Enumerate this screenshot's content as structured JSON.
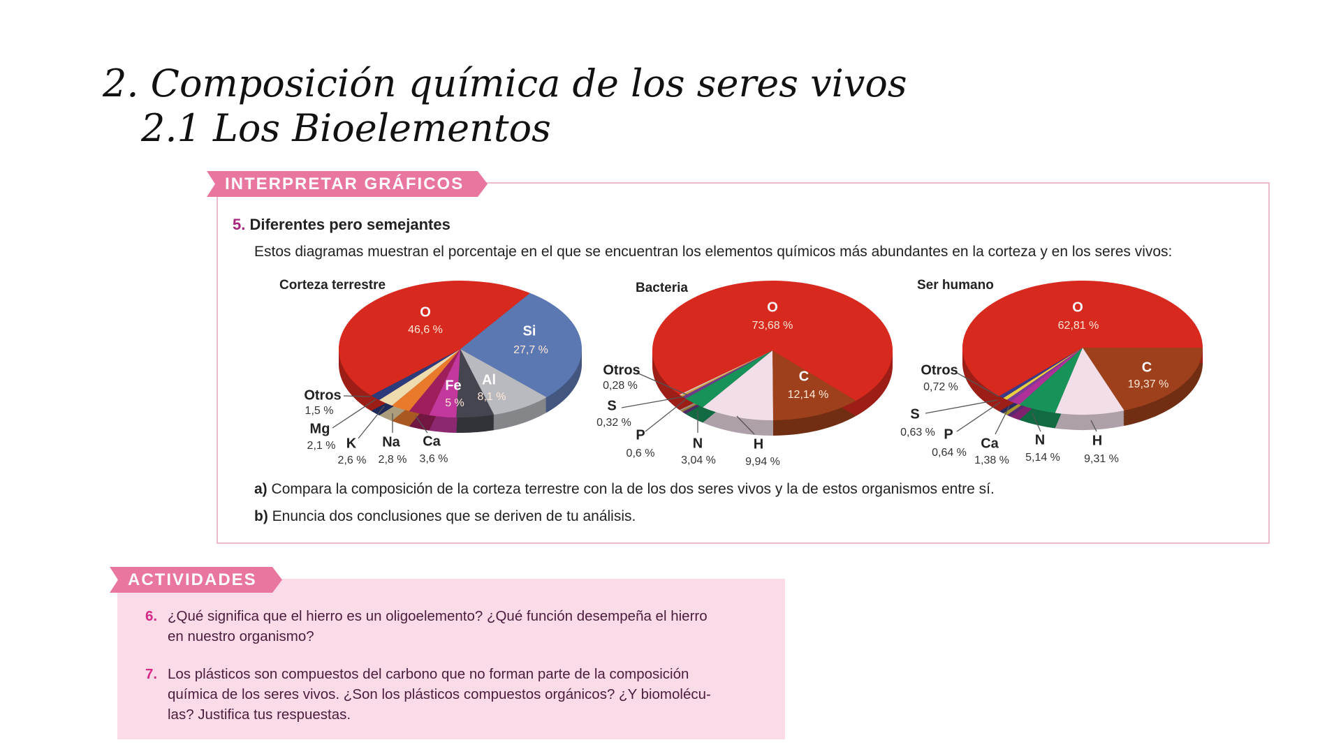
{
  "heading": {
    "title": "2. Composición química de los seres vivos",
    "subtitle": "2.1 Los Bioelementos"
  },
  "interpret": {
    "banner": "INTERPRETAR GRÁFICOS",
    "number": "5.",
    "exercise_title": "Diferentes pero semejantes",
    "description": "Estos diagramas muestran el porcentaje en el que se encuentran los elementos químicos más abundantes en la corteza y en los seres vivos:",
    "question_a_label": "a)",
    "question_a": "Compara la composición de la corteza terrestre con la de los dos seres vivos y la de estos organismos entre sí.",
    "question_b_label": "b)",
    "question_b": "Enuncia dos conclusiones que se deriven de tu análisis."
  },
  "chart_data": [
    {
      "type": "pie",
      "title": "Corteza terrestre",
      "categories": [
        "Si",
        "Al",
        "Fe",
        "Ca",
        "Na",
        "K",
        "Mg",
        "Otros",
        "O"
      ],
      "values": [
        27.7,
        8.1,
        5,
        3.6,
        2.8,
        2.6,
        2.1,
        1.5,
        46.6
      ],
      "labels": [
        "27,7 %",
        "8,1 %",
        "5 %",
        "3,6 %",
        "2,8 %",
        "2,6 %",
        "2,1 %",
        "1,5 %",
        "46,6 %"
      ],
      "colors": [
        "#5b78b2",
        "#b9babf",
        "#45454f",
        "#c2389c",
        "#9e1f5c",
        "#e97a2c",
        "#efdcae",
        "#2b3b7c",
        "#d8291f"
      ]
    },
    {
      "type": "pie",
      "title": "Bacteria",
      "categories": [
        "C",
        "H",
        "N",
        "P",
        "S",
        "Otros",
        "O"
      ],
      "values": [
        12.14,
        9.94,
        3.04,
        0.6,
        0.32,
        0.28,
        73.68
      ],
      "labels": [
        "12,14 %",
        "9,94 %",
        "3,04 %",
        "0,6 %",
        "0,32 %",
        "0,28 %",
        "73,68 %"
      ],
      "colors": [
        "#9d401b",
        "#f2dee9",
        "#17935a",
        "#6b3a8c",
        "#c9a63f",
        "#d9c7b8",
        "#d8291f"
      ]
    },
    {
      "type": "pie",
      "title": "Ser humano",
      "categories": [
        "C",
        "H",
        "N",
        "Ca",
        "P",
        "S",
        "Otros",
        "O"
      ],
      "values": [
        19.37,
        9.31,
        5.14,
        1.38,
        0.64,
        0.63,
        0.72,
        62.81
      ],
      "labels": [
        "19,37 %",
        "9,31 %",
        "5,14 %",
        "1,38 %",
        "0,64 %",
        "0,63 %",
        "0,72 %",
        "62,81 %"
      ],
      "colors": [
        "#9d401b",
        "#f2dee9",
        "#17935a",
        "#b0309a",
        "#7a3a9a",
        "#e8d040",
        "#3a3a8a",
        "#d8291f"
      ]
    }
  ],
  "activities": {
    "banner": "ACTIVIDADES",
    "items": [
      {
        "number": "6.",
        "line1": "¿Qué significa que el hierro es un oligoelemento? ¿Qué función desempeña el hierro",
        "line2": "en nuestro organismo?"
      },
      {
        "number": "7.",
        "line1": "Los plásticos son compuestos del carbono que no forman parte de la composición",
        "line2": "química de los seres vivos. ¿Son los plásticos compuestos orgánicos? ¿Y biomolécu-",
        "line3": "las? Justifica tus respuestas."
      }
    ]
  }
}
